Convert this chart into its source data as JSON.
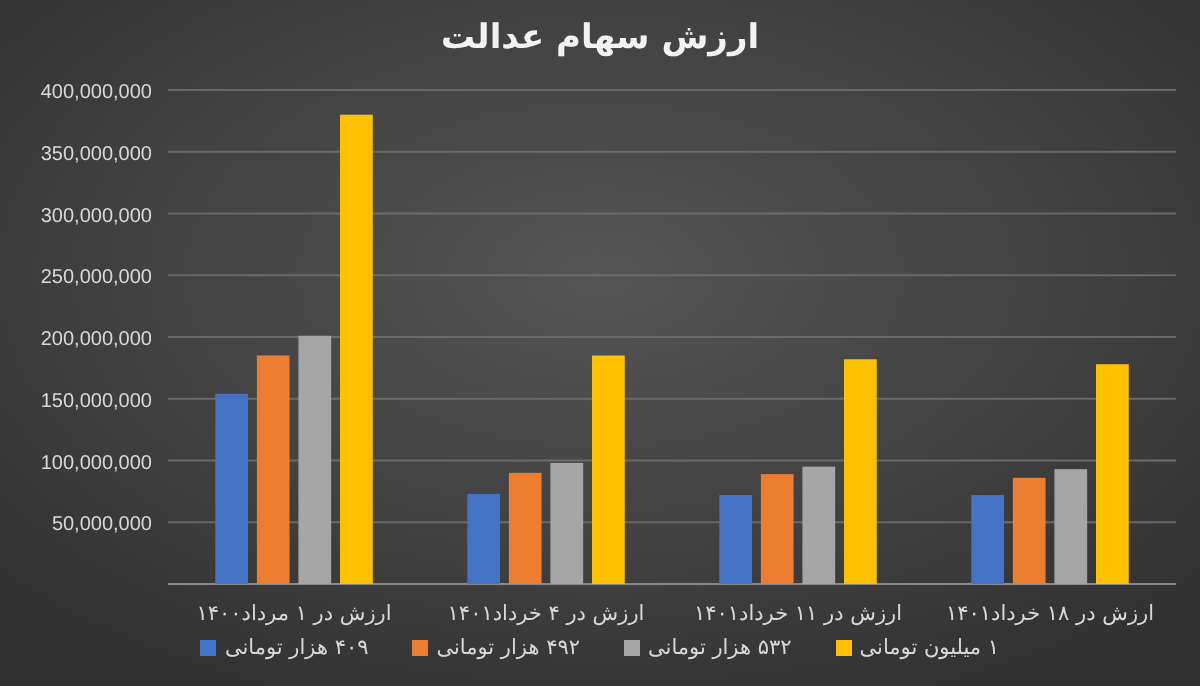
{
  "chart_data": {
    "type": "bar",
    "title": "ارزش سهام عدالت",
    "categories": [
      "ارزش در ۱ مرداد۱۴۰۰",
      "ارزش در ۴ خرداد۱۴۰۱",
      "ارزش در ۱۱ خرداد۱۴۰۱",
      "ارزش در ۱۸ خرداد۱۴۰۱"
    ],
    "series": [
      {
        "name": "۴۰۹ هزار تومانی",
        "color": "#4472c4",
        "values": [
          154000000,
          73000000,
          72000000,
          72000000
        ]
      },
      {
        "name": "۴۹۲ هزار تومانی",
        "color": "#ed7d31",
        "values": [
          185000000,
          90000000,
          89000000,
          86000000
        ]
      },
      {
        "name": "۵۳۲ هزار تومانی",
        "color": "#a5a5a5",
        "values": [
          201000000,
          98000000,
          95000000,
          93000000
        ]
      },
      {
        "name": "۱ میلیون تومانی",
        "color": "#ffc000",
        "values": [
          380000000,
          185000000,
          182000000,
          178000000
        ]
      }
    ],
    "ylim": [
      0,
      400000000
    ],
    "yticks": [
      {
        "value": 50000000,
        "label": "50,000,000"
      },
      {
        "value": 100000000,
        "label": "100,000,000"
      },
      {
        "value": 150000000,
        "label": "150,000,000"
      },
      {
        "value": 200000000,
        "label": "200,000,000"
      },
      {
        "value": 250000000,
        "label": "250,000,000"
      },
      {
        "value": 300000000,
        "label": "300,000,000"
      },
      {
        "value": 350000000,
        "label": "350,000,000"
      },
      {
        "value": 400000000,
        "label": "400,000,000"
      }
    ],
    "grid": "y",
    "legend": "bottom"
  }
}
